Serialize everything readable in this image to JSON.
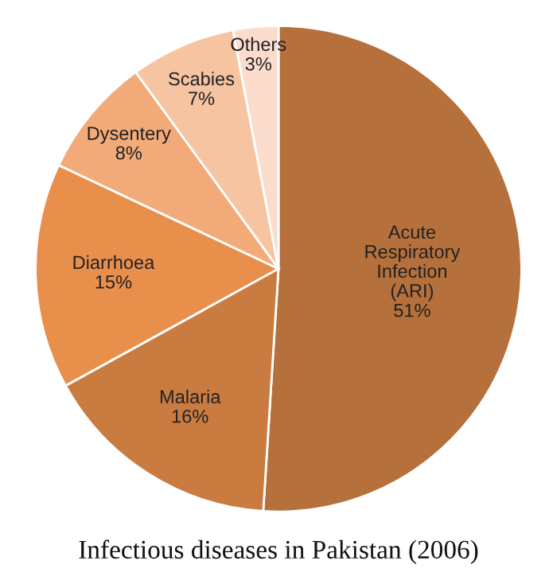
{
  "chart_data": {
    "type": "pie",
    "title": "Infectious diseases in Pakistan (2006)",
    "categories": [
      "Acute\nRespiratory\nInfection\n(ARI)",
      "Malaria",
      "Diarrhoea",
      "Dysentery",
      "Scabies",
      "Others"
    ],
    "values": [
      51,
      16,
      15,
      8,
      7,
      3
    ],
    "value_labels": [
      "51%",
      "16%",
      "15%",
      "8%",
      "7%",
      "3%"
    ],
    "colors": [
      "#b5703c",
      "#c97b40",
      "#e98f4c",
      "#f2aa79",
      "#f7c4a2",
      "#fbdccd"
    ]
  }
}
